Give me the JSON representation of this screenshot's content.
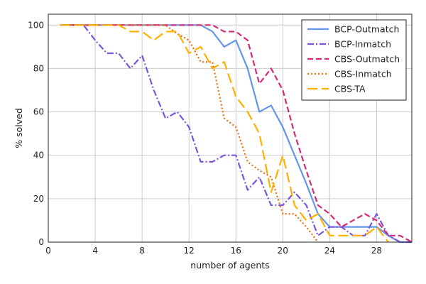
{
  "chart_data": {
    "type": "line",
    "xlabel": "number of agents",
    "ylabel": "% solved",
    "xlim": [
      0,
      31
    ],
    "ylim": [
      0,
      105
    ],
    "xticks": [
      0,
      4,
      8,
      12,
      16,
      20,
      24,
      28
    ],
    "yticks": [
      0,
      20,
      40,
      60,
      80,
      100
    ],
    "grid": true,
    "legend_position": "top-right",
    "series": [
      {
        "name": "BCP-Outmatch",
        "color": "#6495ED",
        "dash": "solid",
        "points": [
          [
            1,
            100
          ],
          [
            2,
            100
          ],
          [
            3,
            100
          ],
          [
            4,
            100
          ],
          [
            5,
            100
          ],
          [
            6,
            100
          ],
          [
            7,
            100
          ],
          [
            8,
            100
          ],
          [
            9,
            100
          ],
          [
            10,
            100
          ],
          [
            11,
            100
          ],
          [
            12,
            100
          ],
          [
            13,
            100
          ],
          [
            14,
            97
          ],
          [
            15,
            90
          ],
          [
            16,
            93
          ],
          [
            17,
            80
          ],
          [
            18,
            60
          ],
          [
            19,
            63
          ],
          [
            20,
            53
          ],
          [
            21,
            40
          ],
          [
            22,
            27
          ],
          [
            23,
            13
          ],
          [
            24,
            7
          ],
          [
            25,
            7
          ],
          [
            26,
            7
          ],
          [
            27,
            7
          ],
          [
            28,
            7
          ],
          [
            29,
            3
          ],
          [
            30,
            0
          ],
          [
            31,
            0
          ]
        ]
      },
      {
        "name": "BCP-Inmatch",
        "color": "#7B55E0",
        "dash": "dashdot",
        "points": [
          [
            1,
            100
          ],
          [
            2,
            100
          ],
          [
            3,
            100
          ],
          [
            4,
            93
          ],
          [
            5,
            87
          ],
          [
            6,
            87
          ],
          [
            7,
            80
          ],
          [
            8,
            86
          ],
          [
            9,
            70
          ],
          [
            10,
            57
          ],
          [
            11,
            60
          ],
          [
            12,
            53
          ],
          [
            13,
            37
          ],
          [
            14,
            37
          ],
          [
            15,
            40
          ],
          [
            16,
            40
          ],
          [
            17,
            24
          ],
          [
            18,
            30
          ],
          [
            19,
            17
          ],
          [
            20,
            17
          ],
          [
            21,
            23
          ],
          [
            22,
            17
          ],
          [
            23,
            3
          ],
          [
            24,
            7
          ],
          [
            25,
            7
          ],
          [
            26,
            3
          ],
          [
            27,
            3
          ],
          [
            28,
            13
          ],
          [
            29,
            3
          ],
          [
            30,
            0
          ],
          [
            31,
            0
          ]
        ]
      },
      {
        "name": "CBS-Outmatch",
        "color": "#D62A78",
        "dash": "dashed",
        "points": [
          [
            1,
            100
          ],
          [
            2,
            100
          ],
          [
            3,
            100
          ],
          [
            4,
            100
          ],
          [
            5,
            100
          ],
          [
            6,
            100
          ],
          [
            7,
            100
          ],
          [
            8,
            100
          ],
          [
            9,
            100
          ],
          [
            10,
            100
          ],
          [
            11,
            100
          ],
          [
            12,
            100
          ],
          [
            13,
            100
          ],
          [
            14,
            100
          ],
          [
            15,
            97
          ],
          [
            16,
            97
          ],
          [
            17,
            93
          ],
          [
            18,
            73
          ],
          [
            19,
            80
          ],
          [
            20,
            70
          ],
          [
            21,
            50
          ],
          [
            22,
            33
          ],
          [
            23,
            17
          ],
          [
            24,
            13
          ],
          [
            25,
            7
          ],
          [
            26,
            10
          ],
          [
            27,
            13
          ],
          [
            28,
            10
          ],
          [
            29,
            3
          ],
          [
            30,
            3
          ],
          [
            31,
            0
          ]
        ]
      },
      {
        "name": "CBS-Inmatch",
        "color": "#F26B0F",
        "dash": "dotted",
        "points": [
          [
            1,
            100
          ],
          [
            2,
            100
          ],
          [
            3,
            100
          ],
          [
            4,
            100
          ],
          [
            5,
            100
          ],
          [
            6,
            100
          ],
          [
            7,
            100
          ],
          [
            8,
            100
          ],
          [
            9,
            100
          ],
          [
            10,
            100
          ],
          [
            11,
            96
          ],
          [
            12,
            93
          ],
          [
            13,
            83
          ],
          [
            14,
            83
          ],
          [
            15,
            57
          ],
          [
            16,
            53
          ],
          [
            17,
            37
          ],
          [
            18,
            33
          ],
          [
            19,
            30
          ],
          [
            20,
            13
          ],
          [
            21,
            13
          ],
          [
            22,
            7
          ],
          [
            23,
            0
          ]
        ]
      },
      {
        "name": "CBS-TA",
        "color": "#FFB000",
        "dash": "longdash",
        "points": [
          [
            1,
            100
          ],
          [
            2,
            100
          ],
          [
            3,
            100
          ],
          [
            4,
            100
          ],
          [
            5,
            100
          ],
          [
            6,
            100
          ],
          [
            7,
            97
          ],
          [
            8,
            97
          ],
          [
            9,
            93
          ],
          [
            10,
            97
          ],
          [
            11,
            97
          ],
          [
            12,
            87
          ],
          [
            13,
            90
          ],
          [
            14,
            80
          ],
          [
            15,
            83
          ],
          [
            16,
            67
          ],
          [
            17,
            60
          ],
          [
            18,
            50
          ],
          [
            19,
            23
          ],
          [
            20,
            40
          ],
          [
            21,
            17
          ],
          [
            22,
            10
          ],
          [
            23,
            13
          ],
          [
            24,
            3
          ],
          [
            25,
            3
          ],
          [
            26,
            3
          ],
          [
            27,
            3
          ],
          [
            28,
            7
          ],
          [
            29,
            0
          ]
        ]
      }
    ]
  }
}
